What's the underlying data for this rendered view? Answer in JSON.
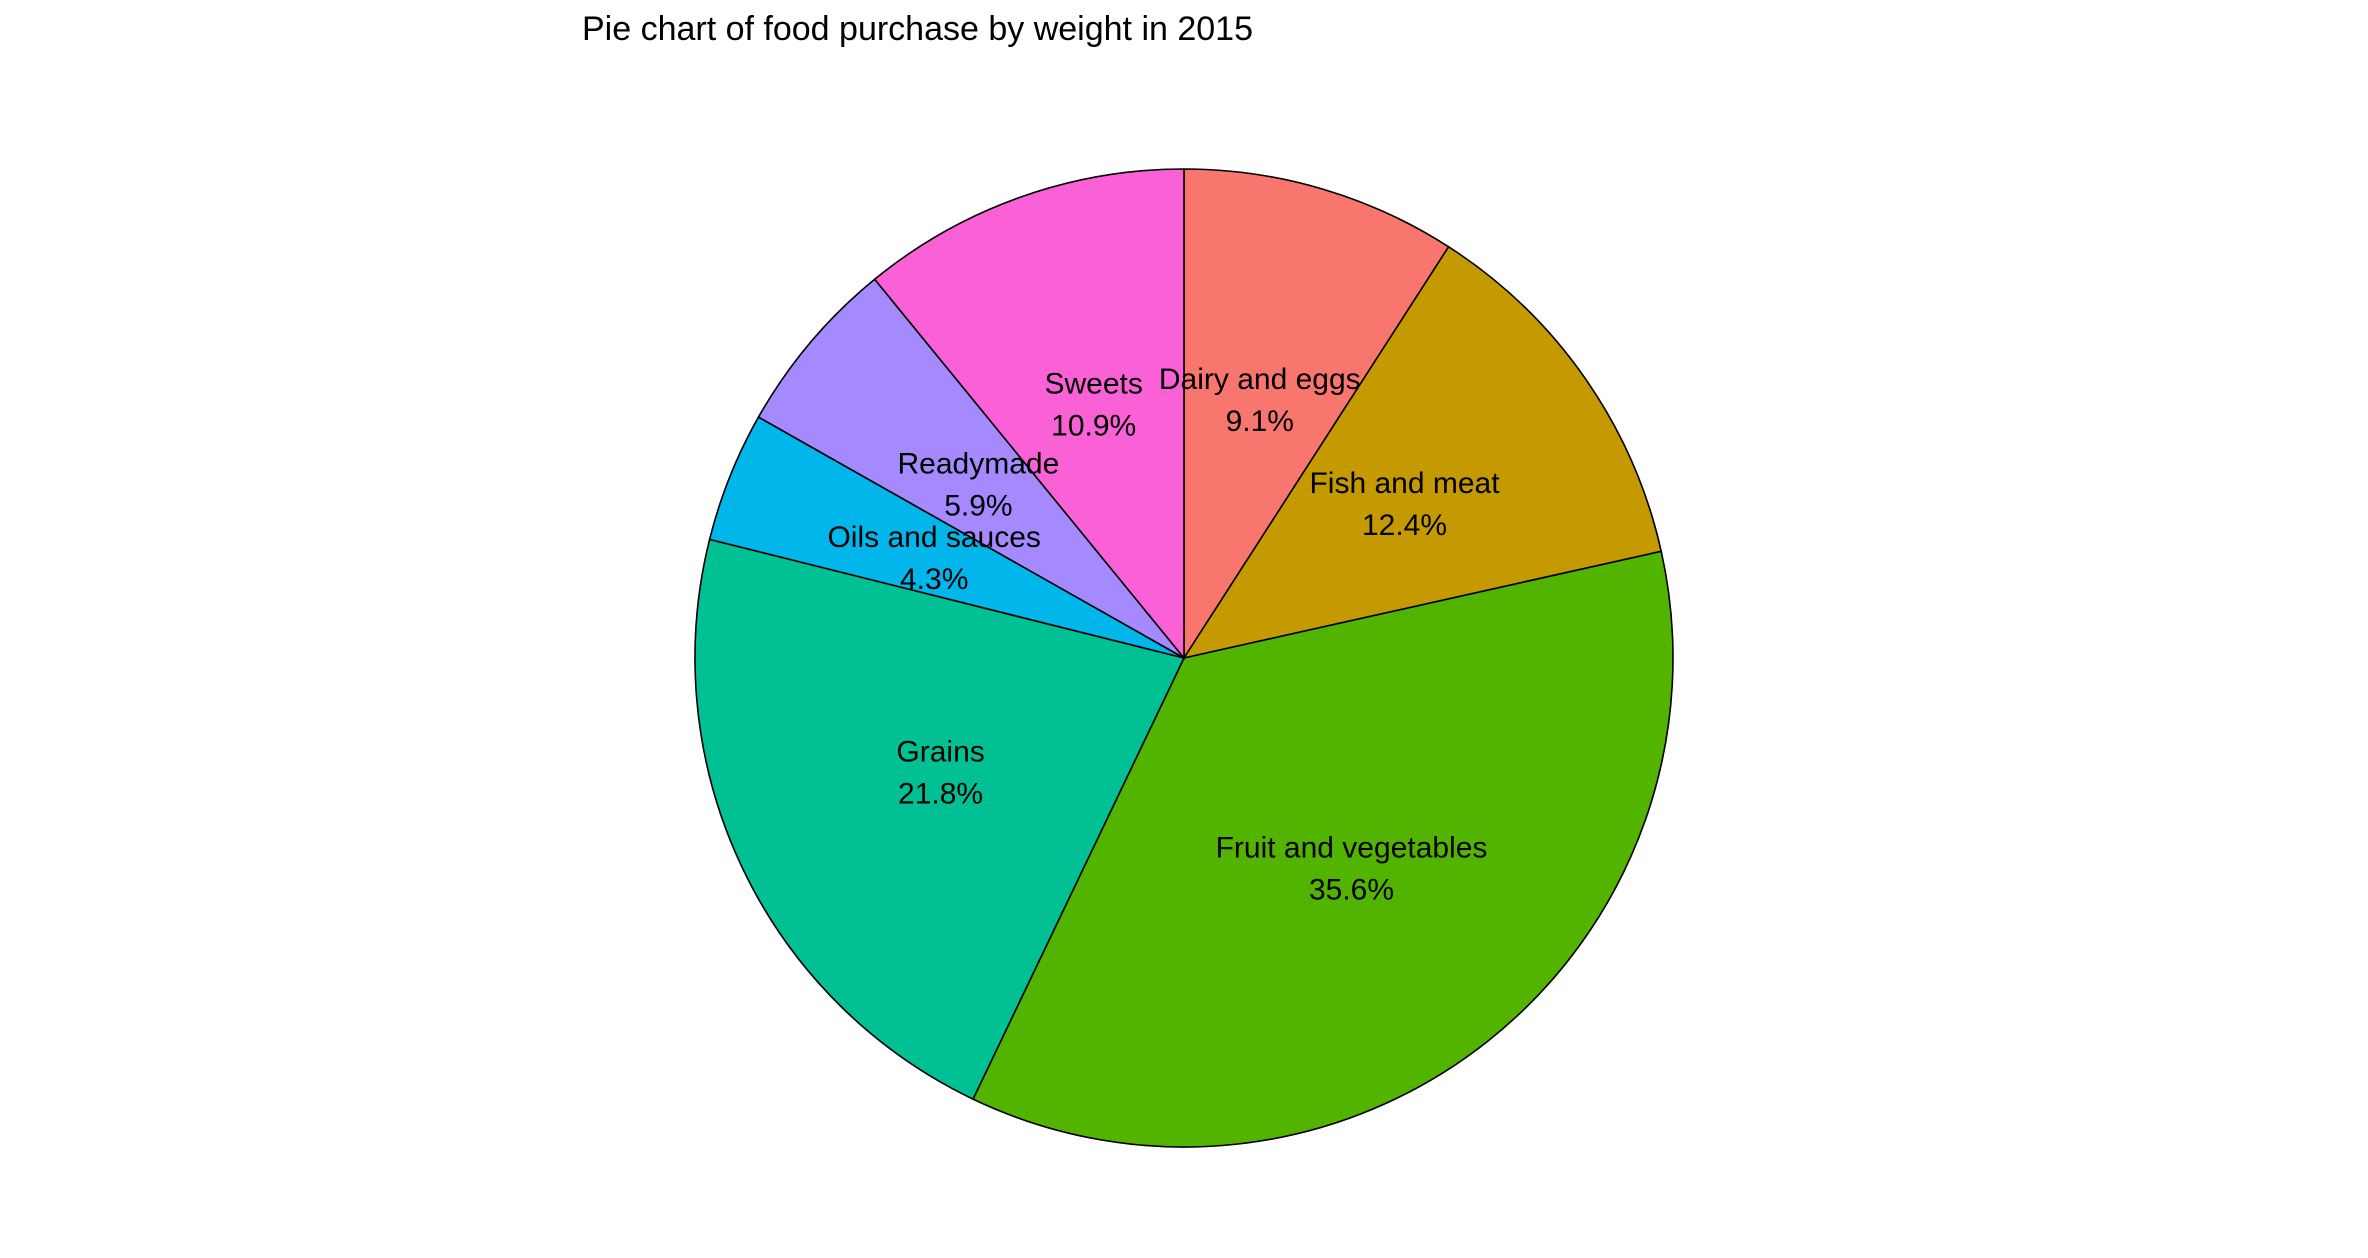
{
  "chart_data": {
    "type": "pie",
    "title": "Pie chart of food purchase by weight in 2015",
    "slices": [
      {
        "label": "Dairy and eggs",
        "value": 9.1,
        "display": "9.1%",
        "color": "#F8766D"
      },
      {
        "label": "Fish and meat",
        "value": 12.4,
        "display": "12.4%",
        "color": "#C49A00"
      },
      {
        "label": "Fruit and vegetables",
        "value": 35.6,
        "display": "35.6%",
        "color": "#53B400"
      },
      {
        "label": "Grains",
        "value": 21.8,
        "display": "21.8%",
        "color": "#00C094"
      },
      {
        "label": "Oils and sauces",
        "value": 4.3,
        "display": "4.3%",
        "color": "#00B6EB"
      },
      {
        "label": "Readymade",
        "value": 5.9,
        "display": "5.9%",
        "color": "#A58AFF"
      },
      {
        "label": "Sweets",
        "value": 10.9,
        "display": "10.9%",
        "color": "#FB61D7"
      }
    ],
    "start": "12 o'clock",
    "direction": "clockwise",
    "legend": "none"
  }
}
